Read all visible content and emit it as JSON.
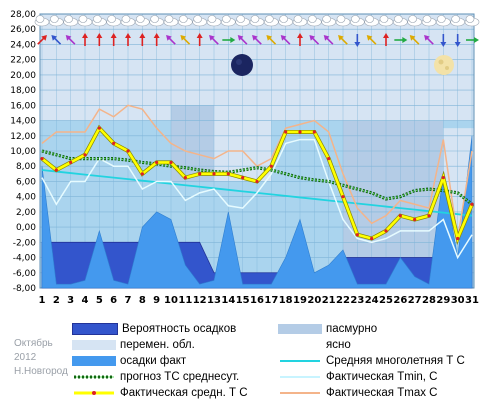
{
  "chart_data": {
    "type": "line",
    "title": "",
    "xlabel": "",
    "ylabel": "",
    "x": [
      1,
      2,
      3,
      4,
      5,
      6,
      7,
      8,
      9,
      10,
      11,
      12,
      13,
      14,
      15,
      16,
      17,
      18,
      19,
      20,
      21,
      22,
      23,
      24,
      25,
      26,
      27,
      28,
      29,
      30,
      31
    ],
    "ylim": [
      -8,
      28
    ],
    "yticks": [
      "-8,00",
      "-6,00",
      "-4,00",
      "-2,00",
      "0,00",
      "2,00",
      "4,00",
      "6,00",
      "8,00",
      "10,00",
      "12,00",
      "14,00",
      "16,00",
      "18,00",
      "20,00",
      "22,00",
      "24,00",
      "26,00",
      "28,00"
    ],
    "grid": true,
    "series": [
      {
        "name": "Вероятность осадков",
        "style": "area",
        "color": "#3355cc",
        "values": [
          -2,
          -2,
          -2,
          -2,
          -2,
          -2,
          -2,
          -2,
          -2,
          -2,
          -2,
          -2,
          -6,
          -6,
          -6,
          -6,
          -6,
          -6,
          -6,
          -6,
          -6,
          -4,
          -4,
          -4,
          -4,
          -4,
          -4,
          -4,
          -4,
          -4,
          -4
        ]
      },
      {
        "name": "осадки факт",
        "style": "area",
        "color": "#4499ee",
        "values": [
          8,
          -7.5,
          -7.5,
          -7,
          -0.5,
          -7,
          -7.5,
          0,
          2,
          1,
          -5,
          -7.5,
          -7,
          2,
          -7.5,
          -7.5,
          -7.5,
          -4,
          1,
          -6,
          -5,
          -3,
          -7.5,
          -7.5,
          -7.5,
          -4,
          -6.5,
          -7.5,
          7,
          -4,
          12
        ]
      },
      {
        "name": "Средняя многолетняя Т С",
        "style": "line",
        "color": "#22d3e0",
        "values": [
          7.5,
          7.3,
          7.1,
          6.9,
          6.7,
          6.5,
          6.3,
          6.1,
          5.9,
          5.7,
          5.5,
          5.3,
          5.1,
          4.9,
          4.7,
          4.5,
          4.3,
          4.1,
          3.9,
          3.7,
          3.5,
          3.3,
          3.1,
          2.9,
          2.7,
          2.5,
          2.3,
          2.1,
          1.9,
          1.7,
          1.5
        ]
      },
      {
        "name": "прогноз ТС среднесут.",
        "style": "dotted",
        "color": "#116611",
        "values": [
          10,
          9.5,
          9,
          9,
          9,
          9,
          8.8,
          8.5,
          8.3,
          8,
          7.8,
          7.5,
          7.3,
          7.2,
          7.5,
          7.8,
          7.5,
          7,
          6.5,
          6.2,
          6,
          5.5,
          5,
          4.5,
          3.7,
          4,
          4.8,
          5,
          4.8,
          4.5,
          3
        ]
      },
      {
        "name": "Фактическая Tmin, С",
        "style": "line",
        "color": "#e6fbff",
        "values": [
          6.5,
          3,
          6,
          6,
          9,
          8,
          8,
          5,
          6,
          6,
          3.5,
          4.5,
          5,
          2.8,
          2.5,
          4.5,
          7,
          11,
          11.5,
          11.5,
          6,
          1,
          -1.5,
          -2,
          -1.5,
          -0.5,
          -0.5,
          -0.5,
          1,
          -4,
          -1
        ]
      },
      {
        "name": "Фактическая Tmax C",
        "style": "line",
        "color": "#f4b48a",
        "values": [
          11,
          12.5,
          12.5,
          12.5,
          15.5,
          14.5,
          16,
          15.5,
          13,
          11,
          10,
          9.5,
          9,
          10,
          10,
          8,
          9,
          13,
          13.5,
          14,
          12.5,
          7,
          2.5,
          0.5,
          1.5,
          3.5,
          3,
          2.5,
          11.5,
          -1.5,
          10
        ]
      },
      {
        "name": "Фактическая средн. Т С",
        "style": "line",
        "color": "#ffff00",
        "values": [
          9,
          7.5,
          8.5,
          9.5,
          13,
          11,
          10,
          7,
          8.5,
          8.5,
          6.5,
          7,
          7,
          7,
          6.5,
          6,
          8,
          12.5,
          12.5,
          12.5,
          9,
          4,
          -1,
          -1.5,
          -0.5,
          1.5,
          1,
          1.5,
          6.5,
          -1.5,
          3
        ]
      }
    ],
    "background_bands": [
      {
        "name": "пасмурно",
        "color": "#b4cce6"
      },
      {
        "name": "перемен. обл.",
        "color": "#d6e4f3"
      },
      {
        "name": "ясно",
        "color": "#ffffff"
      }
    ],
    "legend_placement": "bottom",
    "legend": {
      "left": [
        "Вероятность осадков",
        "перемен. обл.",
        "осадки факт",
        "прогноз ТС среднесут.",
        "Фактическая средн. Т С"
      ],
      "right": [
        "пасмурно",
        "ясно",
        "Средняя многолетняя Т С",
        "Фактическая Tmin, С",
        "Фактическая Tmax C"
      ]
    }
  },
  "caption": {
    "month": "Октябрь",
    "year": "2012",
    "city": "Н.Новгород"
  },
  "icons": {
    "weather_row": "cloud-icon",
    "wind_row": "wind-arrow-icon",
    "moon_full": "full-moon-icon",
    "moon_new": "new-moon-icon"
  },
  "colors": {
    "plot_bg": "#aad4ee",
    "grid": "#7fb5d8"
  }
}
